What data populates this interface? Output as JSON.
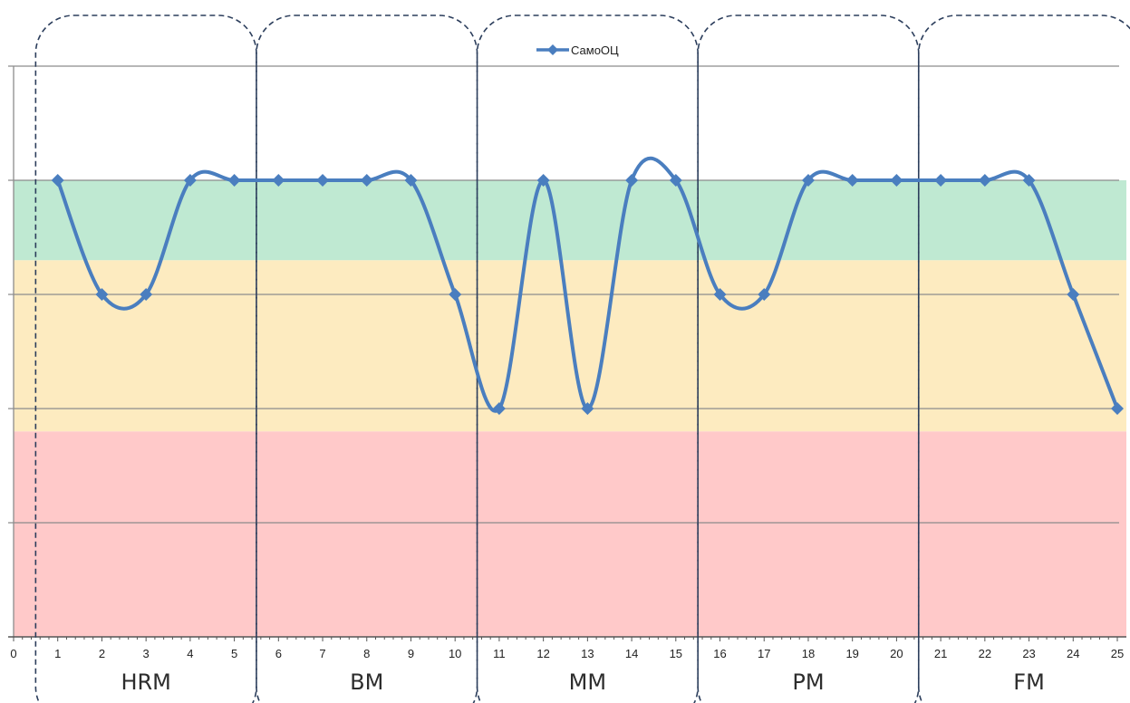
{
  "chart_data": {
    "type": "line",
    "title": "",
    "xlabel": "",
    "ylabel": "",
    "x": [
      1,
      2,
      3,
      4,
      5,
      6,
      7,
      8,
      9,
      10,
      11,
      12,
      13,
      14,
      15,
      16,
      17,
      18,
      19,
      20,
      21,
      22,
      23,
      24,
      25
    ],
    "xlim": [
      0,
      25
    ],
    "ylim": [
      0,
      5
    ],
    "x_ticks": [
      "0",
      "1",
      "2",
      "3",
      "4",
      "5",
      "6",
      "7",
      "8",
      "9",
      "10",
      "11",
      "12",
      "13",
      "14",
      "15",
      "16",
      "17",
      "18",
      "19",
      "20",
      "21",
      "22",
      "23",
      "24",
      "25"
    ],
    "y_gridlines": [
      1,
      2,
      3,
      4,
      5
    ],
    "y_tick_labels_shown": false,
    "grid": true,
    "smoothed": true,
    "series": [
      {
        "name": "СамоОЦ",
        "color": "#4a7ebf",
        "marker": "diamond",
        "values": [
          4,
          3,
          3,
          4,
          4,
          4,
          4,
          4,
          4,
          3,
          2,
          4,
          2,
          4,
          4,
          3,
          3,
          4,
          4,
          4,
          4,
          4,
          4,
          3,
          2
        ]
      }
    ],
    "legend": {
      "placement": "top-center"
    },
    "bands": [
      {
        "name": "red",
        "from": 0,
        "to": 1.8,
        "color": "#ffc9c9"
      },
      {
        "name": "yellow",
        "from": 1.8,
        "to": 3.3,
        "color": "#fdebc0"
      },
      {
        "name": "green",
        "from": 3.3,
        "to": 4,
        "color": "#bfe9d2"
      }
    ],
    "groups": [
      {
        "label": "HRM",
        "from": 0.5,
        "to": 5.5
      },
      {
        "label": "BM",
        "from": 5.5,
        "to": 10.5
      },
      {
        "label": "MM",
        "from": 10.5,
        "to": 15.5
      },
      {
        "label": "PM",
        "from": 15.5,
        "to": 20.5
      },
      {
        "label": "FM",
        "from": 20.5,
        "to": 25.5
      }
    ],
    "colors": {
      "gridline": "#8c8c8c",
      "axis": "#555555",
      "group_outline": "#2c3e5c"
    }
  }
}
